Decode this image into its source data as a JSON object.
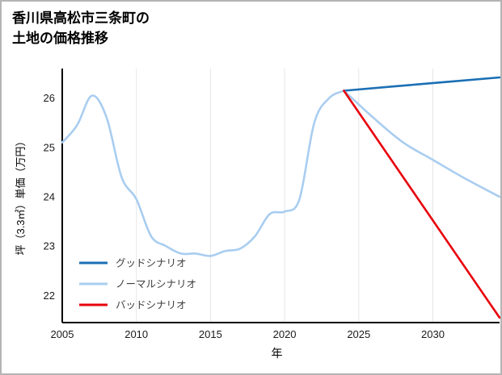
{
  "header": {
    "title_line1": "香川県高松市三条町の",
    "title_line2": "土地の価格推移"
  },
  "chart_data": {
    "type": "line",
    "title": "香川県高松市三条町の土地の価格推移",
    "xlabel": "年",
    "ylabel": "坪（3.3㎡）単価（万円）",
    "xlim": [
      2005,
      2034.5
    ],
    "ylim": [
      21.45,
      26.6
    ],
    "xticks": [
      2005,
      2010,
      2015,
      2020,
      2025,
      2030
    ],
    "yticks": [
      22,
      23,
      24,
      25,
      26
    ],
    "grid": "vertical-light",
    "grid_color": "#e6e6e6",
    "axis_color": "#000000",
    "legend_position": "lower-left",
    "history": {
      "color": "#a9cdf0",
      "x": [
        2005,
        2006,
        2007,
        2008,
        2009,
        2010,
        2011,
        2012,
        2013,
        2014,
        2015,
        2016,
        2017,
        2018,
        2019,
        2020,
        2021,
        2022,
        2023,
        2024
      ],
      "y": [
        25.1,
        25.45,
        26.05,
        25.6,
        24.4,
        23.95,
        23.2,
        23.0,
        22.85,
        22.85,
        22.8,
        22.9,
        22.95,
        23.2,
        23.65,
        23.7,
        23.95,
        25.5,
        26.0,
        26.15
      ]
    },
    "scenarios": [
      {
        "name": "グッドシナリオ",
        "color": "#1b6fb4",
        "x": [
          2024,
          2029,
          2034.5
        ],
        "y": [
          26.15,
          26.28,
          26.42
        ]
      },
      {
        "name": "ノーマルシナリオ",
        "color": "#a9cdf0",
        "x": [
          2024,
          2026,
          2028,
          2030,
          2032,
          2034.5
        ],
        "y": [
          26.15,
          25.6,
          25.1,
          24.75,
          24.4,
          24.0
        ]
      },
      {
        "name": "バッドシナリオ",
        "color": "#e8000b",
        "x": [
          2024,
          2034.5
        ],
        "y": [
          26.15,
          21.55
        ]
      }
    ]
  }
}
